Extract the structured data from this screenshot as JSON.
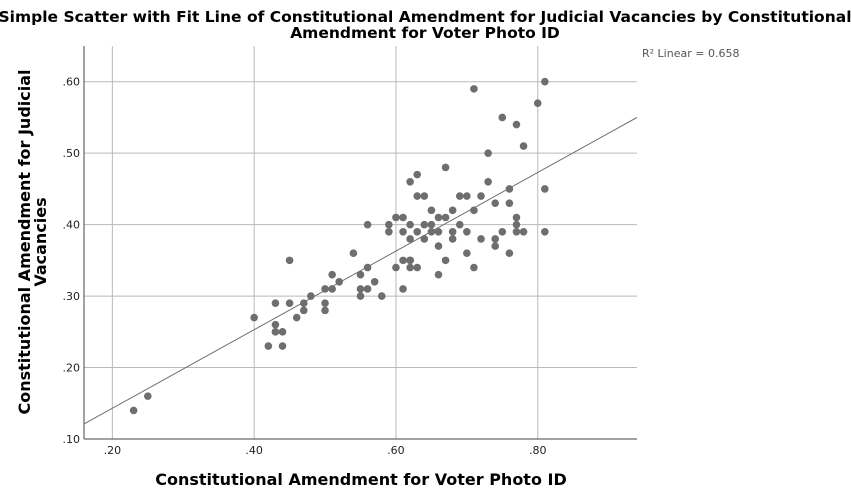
{
  "chart_data": {
    "type": "scatter",
    "title": [
      "Simple Scatter with Fit Line of Constitutional Amendment for Judicial Vacancies by Constitutional",
      "Amendment for Voter Photo ID"
    ],
    "xlabel": "Constitutional Amendment for Voter Photo ID",
    "ylabel": [
      "Constitutional Amendment for Judicial",
      "Vacancies"
    ],
    "xlim": [
      0.16,
      0.94
    ],
    "ylim": [
      0.1,
      0.65
    ],
    "xticks": [
      0.2,
      0.4,
      0.6,
      0.8
    ],
    "xtick_labels": [
      ".20",
      ".40",
      ".60",
      ".80"
    ],
    "yticks": [
      0.1,
      0.2,
      0.3,
      0.4,
      0.5,
      0.6
    ],
    "ytick_labels": [
      ".10",
      ".20",
      ".30",
      ".40",
      ".50",
      ".60"
    ],
    "grid": true,
    "fit_line": {
      "slope": 0.55,
      "intercept": 0.033,
      "x_range": [
        0.16,
        0.94
      ]
    },
    "annotation": "R² Linear = 0.658",
    "colors": {
      "points": "#6e6e6e",
      "fit_line": "#6f6f6f",
      "grid": "#b9b9b9"
    },
    "points": [
      [
        0.23,
        0.14
      ],
      [
        0.25,
        0.16
      ],
      [
        0.4,
        0.27
      ],
      [
        0.42,
        0.23
      ],
      [
        0.43,
        0.29
      ],
      [
        0.43,
        0.26
      ],
      [
        0.43,
        0.25
      ],
      [
        0.44,
        0.25
      ],
      [
        0.44,
        0.23
      ],
      [
        0.45,
        0.35
      ],
      [
        0.45,
        0.29
      ],
      [
        0.46,
        0.27
      ],
      [
        0.47,
        0.29
      ],
      [
        0.47,
        0.28
      ],
      [
        0.48,
        0.3
      ],
      [
        0.5,
        0.31
      ],
      [
        0.5,
        0.29
      ],
      [
        0.5,
        0.28
      ],
      [
        0.51,
        0.33
      ],
      [
        0.51,
        0.31
      ],
      [
        0.52,
        0.32
      ],
      [
        0.54,
        0.36
      ],
      [
        0.55,
        0.33
      ],
      [
        0.55,
        0.31
      ],
      [
        0.55,
        0.3
      ],
      [
        0.56,
        0.4
      ],
      [
        0.56,
        0.34
      ],
      [
        0.56,
        0.31
      ],
      [
        0.57,
        0.32
      ],
      [
        0.58,
        0.3
      ],
      [
        0.59,
        0.4
      ],
      [
        0.59,
        0.39
      ],
      [
        0.6,
        0.41
      ],
      [
        0.6,
        0.34
      ],
      [
        0.61,
        0.41
      ],
      [
        0.61,
        0.39
      ],
      [
        0.61,
        0.35
      ],
      [
        0.61,
        0.31
      ],
      [
        0.62,
        0.46
      ],
      [
        0.62,
        0.4
      ],
      [
        0.62,
        0.38
      ],
      [
        0.62,
        0.35
      ],
      [
        0.62,
        0.35
      ],
      [
        0.62,
        0.34
      ],
      [
        0.63,
        0.47
      ],
      [
        0.63,
        0.44
      ],
      [
        0.63,
        0.39
      ],
      [
        0.63,
        0.34
      ],
      [
        0.64,
        0.44
      ],
      [
        0.64,
        0.4
      ],
      [
        0.64,
        0.38
      ],
      [
        0.65,
        0.42
      ],
      [
        0.65,
        0.4
      ],
      [
        0.65,
        0.39
      ],
      [
        0.66,
        0.41
      ],
      [
        0.66,
        0.39
      ],
      [
        0.66,
        0.37
      ],
      [
        0.66,
        0.33
      ],
      [
        0.67,
        0.48
      ],
      [
        0.67,
        0.41
      ],
      [
        0.67,
        0.35
      ],
      [
        0.68,
        0.42
      ],
      [
        0.68,
        0.39
      ],
      [
        0.68,
        0.38
      ],
      [
        0.69,
        0.44
      ],
      [
        0.69,
        0.4
      ],
      [
        0.7,
        0.44
      ],
      [
        0.7,
        0.39
      ],
      [
        0.7,
        0.36
      ],
      [
        0.71,
        0.59
      ],
      [
        0.71,
        0.42
      ],
      [
        0.71,
        0.34
      ],
      [
        0.72,
        0.44
      ],
      [
        0.72,
        0.38
      ],
      [
        0.73,
        0.5
      ],
      [
        0.73,
        0.46
      ],
      [
        0.74,
        0.43
      ],
      [
        0.74,
        0.38
      ],
      [
        0.74,
        0.37
      ],
      [
        0.75,
        0.55
      ],
      [
        0.75,
        0.39
      ],
      [
        0.76,
        0.45
      ],
      [
        0.76,
        0.43
      ],
      [
        0.76,
        0.36
      ],
      [
        0.77,
        0.54
      ],
      [
        0.77,
        0.41
      ],
      [
        0.77,
        0.4
      ],
      [
        0.77,
        0.39
      ],
      [
        0.78,
        0.51
      ],
      [
        0.78,
        0.39
      ],
      [
        0.8,
        0.57
      ],
      [
        0.81,
        0.6
      ],
      [
        0.81,
        0.45
      ],
      [
        0.81,
        0.39
      ]
    ]
  }
}
